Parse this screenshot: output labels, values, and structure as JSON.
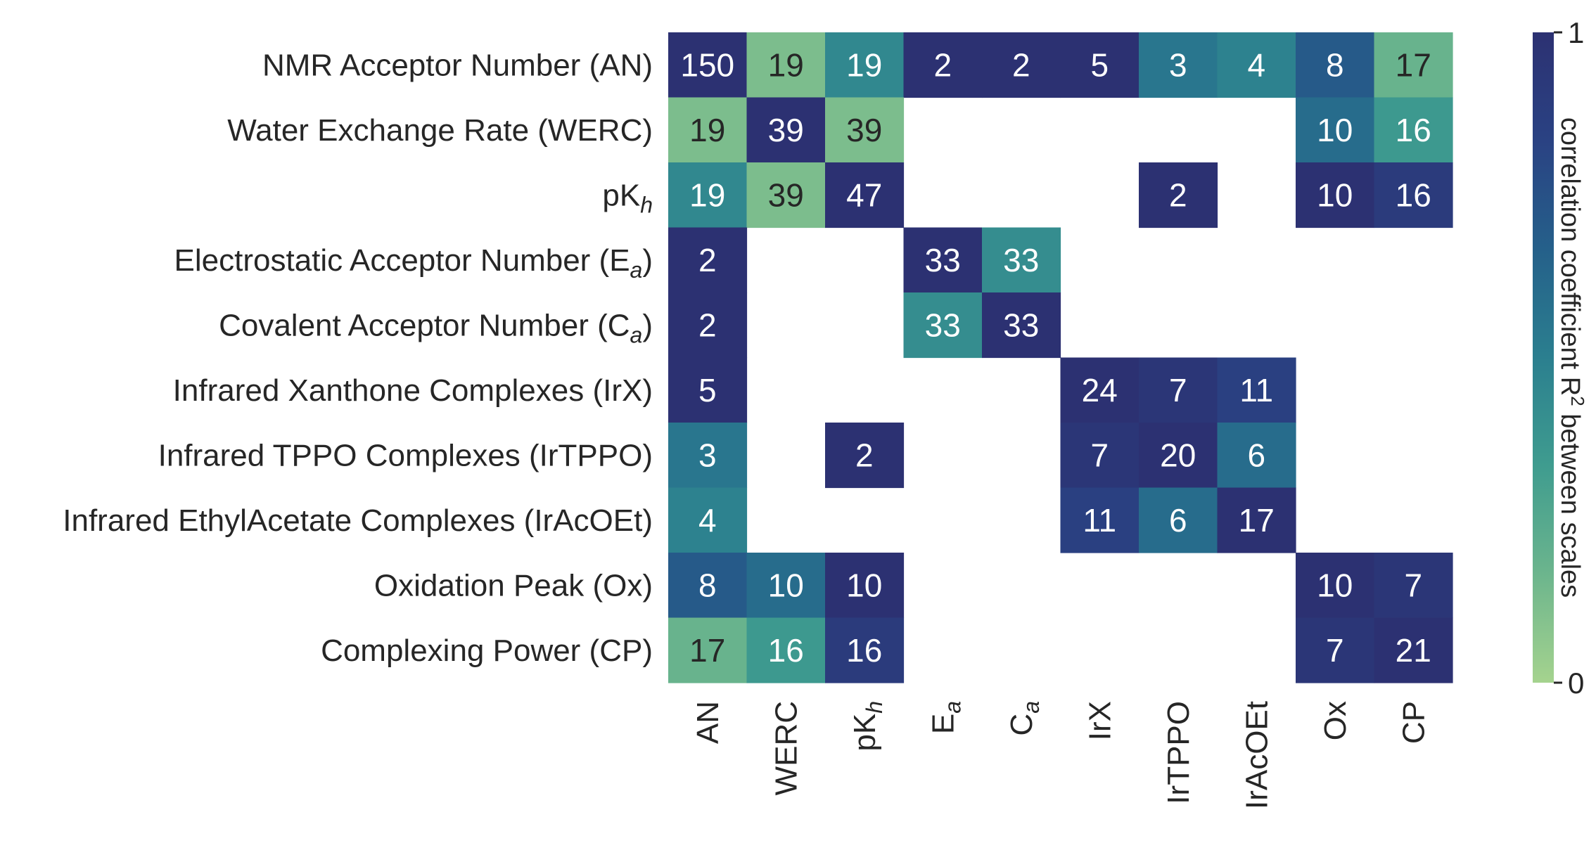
{
  "chart_data": {
    "type": "heatmap",
    "row_labels": [
      {
        "text": "NMR Acceptor Number (AN)",
        "sub": "",
        "suffix": ""
      },
      {
        "text": "Water Exchange Rate (WERC)",
        "sub": "",
        "suffix": ""
      },
      {
        "text": "pK",
        "sub": "h",
        "suffix": ""
      },
      {
        "text": "Electrostatic Acceptor Number (E",
        "sub": "a",
        "suffix": ")"
      },
      {
        "text": "Covalent Acceptor Number (C",
        "sub": "a",
        "suffix": ")"
      },
      {
        "text": "Infrared Xanthone Complexes (IrX)",
        "sub": "",
        "suffix": ""
      },
      {
        "text": "Infrared TPPO Complexes (IrTPPO)",
        "sub": "",
        "suffix": ""
      },
      {
        "text": "Infrared EthylAcetate Complexes (IrAcOEt)",
        "sub": "",
        "suffix": ""
      },
      {
        "text": "Oxidation Peak (Ox)",
        "sub": "",
        "suffix": ""
      },
      {
        "text": "Complexing Power (CP)",
        "sub": "",
        "suffix": ""
      }
    ],
    "col_labels": [
      {
        "text": "AN",
        "sub": ""
      },
      {
        "text": "WERC",
        "sub": ""
      },
      {
        "text": "pK",
        "sub": "h"
      },
      {
        "text": "E",
        "sub": "a"
      },
      {
        "text": "C",
        "sub": "a"
      },
      {
        "text": "IrX",
        "sub": ""
      },
      {
        "text": "IrTPPO",
        "sub": ""
      },
      {
        "text": "IrAcOEt",
        "sub": ""
      },
      {
        "text": "Ox",
        "sub": ""
      },
      {
        "text": "CP",
        "sub": ""
      }
    ],
    "annotations": [
      [
        150,
        19,
        19,
        2,
        2,
        5,
        3,
        4,
        8,
        17
      ],
      [
        19,
        39,
        39,
        null,
        null,
        null,
        null,
        null,
        10,
        16
      ],
      [
        19,
        39,
        47,
        null,
        null,
        null,
        2,
        null,
        10,
        16
      ],
      [
        2,
        null,
        null,
        33,
        33,
        null,
        null,
        null,
        null,
        null
      ],
      [
        2,
        null,
        null,
        33,
        33,
        null,
        null,
        null,
        null,
        null
      ],
      [
        5,
        null,
        null,
        null,
        null,
        24,
        7,
        11,
        null,
        null
      ],
      [
        3,
        null,
        2,
        null,
        null,
        7,
        20,
        6,
        null,
        null
      ],
      [
        4,
        null,
        null,
        null,
        null,
        11,
        6,
        17,
        null,
        null
      ],
      [
        8,
        10,
        10,
        null,
        null,
        null,
        null,
        null,
        10,
        7
      ],
      [
        17,
        16,
        16,
        null,
        null,
        null,
        null,
        null,
        7,
        21
      ]
    ],
    "values": [
      [
        1.0,
        0.12,
        0.45,
        1.0,
        1.0,
        1.0,
        0.55,
        0.48,
        0.7,
        0.18
      ],
      [
        0.12,
        1.0,
        0.12,
        null,
        null,
        null,
        null,
        null,
        0.6,
        0.35
      ],
      [
        0.45,
        0.12,
        1.0,
        null,
        null,
        null,
        1.0,
        null,
        1.0,
        0.9
      ],
      [
        1.0,
        null,
        null,
        1.0,
        0.42,
        null,
        null,
        null,
        null,
        null
      ],
      [
        1.0,
        null,
        null,
        0.42,
        1.0,
        null,
        null,
        null,
        null,
        null
      ],
      [
        1.0,
        null,
        null,
        null,
        null,
        1.0,
        0.95,
        0.85,
        null,
        null
      ],
      [
        0.55,
        null,
        1.0,
        null,
        null,
        0.95,
        1.0,
        0.6,
        null,
        null
      ],
      [
        0.48,
        null,
        null,
        null,
        null,
        0.85,
        0.6,
        1.0,
        null,
        null
      ],
      [
        0.7,
        0.6,
        1.0,
        null,
        null,
        null,
        null,
        null,
        1.0,
        0.95
      ],
      [
        0.18,
        0.35,
        0.9,
        null,
        null,
        null,
        null,
        null,
        0.95,
        1.0
      ]
    ],
    "vmin": 0,
    "vmax": 1,
    "colorbar": {
      "label_main": "correlation coefficient R",
      "label_sup": "2",
      "label_tail": " between scales",
      "ticks": [
        {
          "value": 0,
          "label": "0"
        },
        {
          "value": 1,
          "label": "1"
        }
      ],
      "colormap": "crest",
      "color_stops": [
        "#a5d38e",
        "#6cb58d",
        "#3f9c8f",
        "#2b7f8f",
        "#25608a",
        "#2a4283",
        "#2c3172"
      ]
    },
    "title": "",
    "xlabel": "",
    "ylabel": ""
  }
}
